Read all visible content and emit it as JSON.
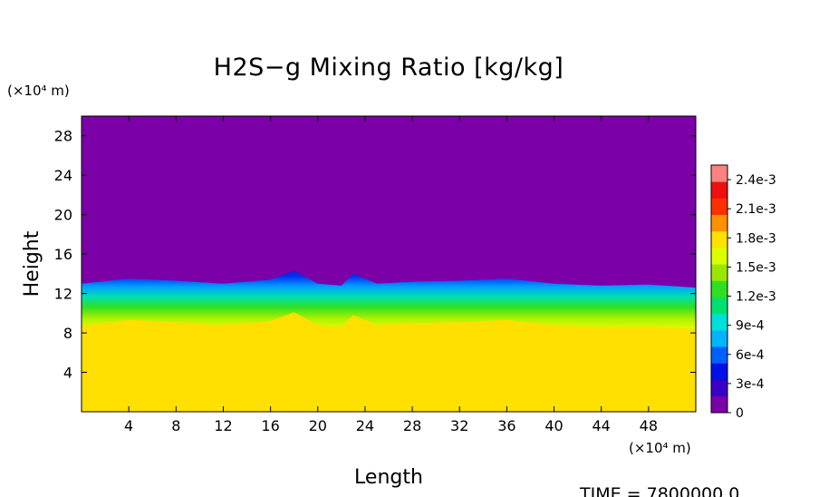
{
  "chart_data": {
    "type": "heatmap",
    "title": "H2S−g Mixing Ratio [kg/kg]",
    "xlabel": "Length",
    "ylabel": "Height",
    "x_unit": "(×10⁴ m)",
    "y_unit": "(×10⁴ m)",
    "xlim": [
      0,
      52
    ],
    "ylim": [
      0,
      30
    ],
    "x_ticks": [
      4,
      8,
      12,
      16,
      20,
      24,
      28,
      32,
      36,
      40,
      44,
      48
    ],
    "y_ticks": [
      4,
      8,
      12,
      16,
      20,
      24,
      28
    ],
    "grid": false,
    "colorbar": {
      "range": [
        0,
        0.00255
      ],
      "placement": "right",
      "ticks": [
        {
          "value": 0,
          "label": "0"
        },
        {
          "value": 0.0003,
          "label": "3e-4"
        },
        {
          "value": 0.0006,
          "label": "6e-4"
        },
        {
          "value": 0.0009,
          "label": "9e-4"
        },
        {
          "value": 0.0012,
          "label": "1.2e-3"
        },
        {
          "value": 0.0015,
          "label": "1.5e-3"
        },
        {
          "value": 0.0018,
          "label": "1.8e-3"
        },
        {
          "value": 0.0021,
          "label": "2.1e-3"
        },
        {
          "value": 0.0024,
          "label": "2.4e-3"
        }
      ],
      "colors": [
        "#7b00a8",
        "#3a00c8",
        "#0010e8",
        "#0060ff",
        "#00b4ff",
        "#00e0d8",
        "#00e070",
        "#30e020",
        "#9ae600",
        "#dcff00",
        "#ffe000",
        "#ff9000",
        "#ff3000",
        "#ee1010",
        "#ff8080"
      ]
    },
    "regions": {
      "lower_value": 0.0018,
      "upper_value": 0.0,
      "interface_height": [
        {
          "x": 0,
          "y": 13.0
        },
        {
          "x": 4,
          "y": 13.5
        },
        {
          "x": 8,
          "y": 13.3
        },
        {
          "x": 12,
          "y": 13.0
        },
        {
          "x": 16,
          "y": 13.4
        },
        {
          "x": 18,
          "y": 14.3
        },
        {
          "x": 20,
          "y": 13.0
        },
        {
          "x": 22,
          "y": 12.8
        },
        {
          "x": 23,
          "y": 14.0
        },
        {
          "x": 25,
          "y": 13.0
        },
        {
          "x": 28,
          "y": 13.2
        },
        {
          "x": 32,
          "y": 13.3
        },
        {
          "x": 36,
          "y": 13.5
        },
        {
          "x": 40,
          "y": 13.0
        },
        {
          "x": 44,
          "y": 12.8
        },
        {
          "x": 48,
          "y": 12.9
        },
        {
          "x": 52,
          "y": 12.6
        }
      ]
    }
  },
  "time_text": "TIME = 7800000.0"
}
